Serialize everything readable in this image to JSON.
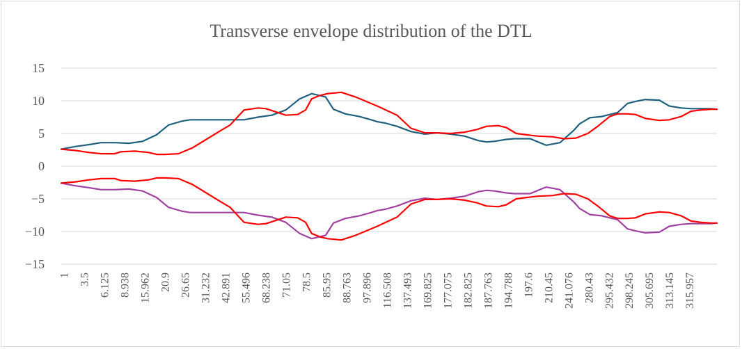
{
  "chart_data": {
    "type": "line",
    "title": "Transverse envelope distribution of the DTL",
    "xlabel": "",
    "ylabel": "",
    "ylim": [
      -15,
      15
    ],
    "yticks": [
      15,
      10,
      5,
      0,
      -5,
      -10,
      -15
    ],
    "grid": "horizontal",
    "legend": "none",
    "x_tick_labels": [
      "1",
      "3.5",
      "6.125",
      "8.938",
      "15.962",
      "20.9",
      "26.65",
      "31.232",
      "42.891",
      "55.496",
      "68.238",
      "71.05",
      "78.5",
      "85.95",
      "88.763",
      "97.896",
      "116.508",
      "137.493",
      "169.825",
      "177.075",
      "182.825",
      "187.763",
      "194.788",
      "197.6",
      "210.45",
      "241.076",
      "280.43",
      "295.432",
      "298.245",
      "305.695",
      "313.145",
      "315.957"
    ],
    "x_index_max": 33,
    "series": [
      {
        "color": "#1f5f7f",
        "x": [
          0,
          0.7,
          1.4,
          2,
          2.7,
          3.4,
          4.1,
          4.8,
          5.4,
          6.1,
          6.5,
          7.1,
          7.8,
          8.5,
          9.2,
          9.9,
          10.6,
          11.3,
          12,
          12.6,
          13.3,
          13.7,
          14.3,
          15,
          15.6,
          15.9,
          16.3,
          16.9,
          17.6,
          18.3,
          18.9,
          19.6,
          20.3,
          21,
          21.4,
          21.8,
          22.4,
          22.8,
          23.2,
          23.6,
          24.4,
          25.1,
          25.8,
          26.1,
          26.6,
          27.2,
          28,
          28.5,
          28.9,
          29.4,
          30.1,
          30.6,
          31.2,
          31.7,
          32.2,
          32.7,
          33
        ],
        "values": [
          2.6,
          3,
          3.3,
          3.6,
          3.6,
          3.5,
          3.8,
          4.8,
          6.3,
          6.9,
          7.1,
          7.1,
          7.1,
          7.1,
          7.1,
          7.5,
          7.8,
          8.6,
          10.3,
          11.1,
          10.6,
          8.7,
          8.0,
          7.6,
          7.1,
          6.8,
          6.6,
          6.1,
          5.3,
          4.9,
          5.1,
          4.9,
          4.6,
          3.9,
          3.7,
          3.8,
          4.1,
          4.2,
          4.2,
          4.2,
          3.2,
          3.6,
          5.5,
          6.5,
          7.4,
          7.6,
          8.2,
          9.6,
          9.9,
          10.2,
          10.1,
          9.2,
          8.9,
          8.8,
          8.8,
          8.8,
          8.7
        ]
      },
      {
        "color": "#ff0000",
        "x": [
          0,
          0.7,
          1.4,
          2,
          2.7,
          3,
          3.7,
          4.4,
          4.8,
          5.2,
          5.9,
          6.6,
          7.3,
          8,
          8.5,
          9.2,
          9.9,
          10.3,
          10.6,
          11.3,
          11.9,
          12.3,
          12.6,
          13,
          13.4,
          14.1,
          14.8,
          15.2,
          15.9,
          16.9,
          17.6,
          18.3,
          18.9,
          19.6,
          20.3,
          20.9,
          21.4,
          22,
          22.4,
          22.9,
          23.4,
          24,
          24.7,
          25.3,
          25.9,
          26.5,
          27,
          27.6,
          28,
          28.5,
          28.9,
          29.4,
          30.1,
          30.6,
          31.2,
          31.7,
          32.2,
          32.7,
          33
        ],
        "values": [
          2.6,
          2.4,
          2.1,
          1.9,
          1.9,
          2.2,
          2.3,
          2.1,
          1.8,
          1.8,
          1.9,
          2.8,
          4.1,
          5.4,
          6.3,
          8.6,
          8.9,
          8.8,
          8.5,
          7.8,
          7.9,
          8.6,
          10.3,
          10.8,
          11.1,
          11.3,
          10.6,
          10.1,
          9.2,
          7.8,
          5.8,
          5.1,
          5.1,
          5.0,
          5.2,
          5.6,
          6.1,
          6.2,
          5.9,
          5.0,
          4.8,
          4.6,
          4.5,
          4.2,
          4.3,
          5.0,
          6.1,
          7.6,
          8.0,
          8.0,
          7.9,
          7.3,
          7.0,
          7.1,
          7.6,
          8.4,
          8.6,
          8.7,
          8.7
        ]
      },
      {
        "color": "#a040a0",
        "x": [
          0,
          0.7,
          1.4,
          2,
          2.7,
          3.4,
          4.1,
          4.8,
          5.4,
          6.1,
          6.5,
          7.1,
          7.8,
          8.5,
          9.2,
          9.9,
          10.6,
          11.3,
          12,
          12.6,
          13.3,
          13.7,
          14.3,
          15,
          15.6,
          15.9,
          16.3,
          16.9,
          17.6,
          18.3,
          18.9,
          19.6,
          20.3,
          21,
          21.4,
          21.8,
          22.4,
          22.8,
          23.2,
          23.6,
          24.4,
          25.1,
          25.8,
          26.1,
          26.6,
          27.2,
          28,
          28.5,
          28.9,
          29.4,
          30.1,
          30.6,
          31.2,
          31.7,
          32.2,
          32.7,
          33
        ],
        "values": [
          -2.6,
          -3,
          -3.3,
          -3.6,
          -3.6,
          -3.5,
          -3.8,
          -4.8,
          -6.3,
          -6.9,
          -7.1,
          -7.1,
          -7.1,
          -7.1,
          -7.1,
          -7.5,
          -7.8,
          -8.6,
          -10.3,
          -11.1,
          -10.6,
          -8.7,
          -8.0,
          -7.6,
          -7.1,
          -6.8,
          -6.6,
          -6.1,
          -5.3,
          -4.9,
          -5.1,
          -4.9,
          -4.6,
          -3.9,
          -3.7,
          -3.8,
          -4.1,
          -4.2,
          -4.2,
          -4.2,
          -3.2,
          -3.6,
          -5.5,
          -6.5,
          -7.4,
          -7.6,
          -8.2,
          -9.6,
          -9.9,
          -10.2,
          -10.1,
          -9.2,
          -8.9,
          -8.8,
          -8.8,
          -8.8,
          -8.7
        ]
      },
      {
        "color": "#ff0000",
        "x": [
          0,
          0.7,
          1.4,
          2,
          2.7,
          3,
          3.7,
          4.4,
          4.8,
          5.2,
          5.9,
          6.6,
          7.3,
          8,
          8.5,
          9.2,
          9.9,
          10.3,
          10.6,
          11.3,
          11.9,
          12.3,
          12.6,
          13,
          13.4,
          14.1,
          14.8,
          15.2,
          15.9,
          16.9,
          17.6,
          18.3,
          18.9,
          19.6,
          20.3,
          20.9,
          21.4,
          22,
          22.4,
          22.9,
          23.4,
          24,
          24.7,
          25.3,
          25.9,
          26.5,
          27,
          27.6,
          28,
          28.5,
          28.9,
          29.4,
          30.1,
          30.6,
          31.2,
          31.7,
          32.2,
          32.7,
          33
        ],
        "values": [
          -2.6,
          -2.4,
          -2.1,
          -1.9,
          -1.9,
          -2.2,
          -2.3,
          -2.1,
          -1.8,
          -1.8,
          -1.9,
          -2.8,
          -4.1,
          -5.4,
          -6.3,
          -8.6,
          -8.9,
          -8.8,
          -8.5,
          -7.8,
          -7.9,
          -8.6,
          -10.3,
          -10.8,
          -11.1,
          -11.3,
          -10.6,
          -10.1,
          -9.2,
          -7.8,
          -5.8,
          -5.1,
          -5.1,
          -5.0,
          -5.2,
          -5.6,
          -6.1,
          -6.2,
          -5.9,
          -5.0,
          -4.8,
          -4.6,
          -4.5,
          -4.2,
          -4.3,
          -5.0,
          -6.1,
          -7.6,
          -8.0,
          -8.0,
          -7.9,
          -7.3,
          -7.0,
          -7.1,
          -7.6,
          -8.4,
          -8.6,
          -8.7,
          -8.7
        ]
      }
    ]
  }
}
